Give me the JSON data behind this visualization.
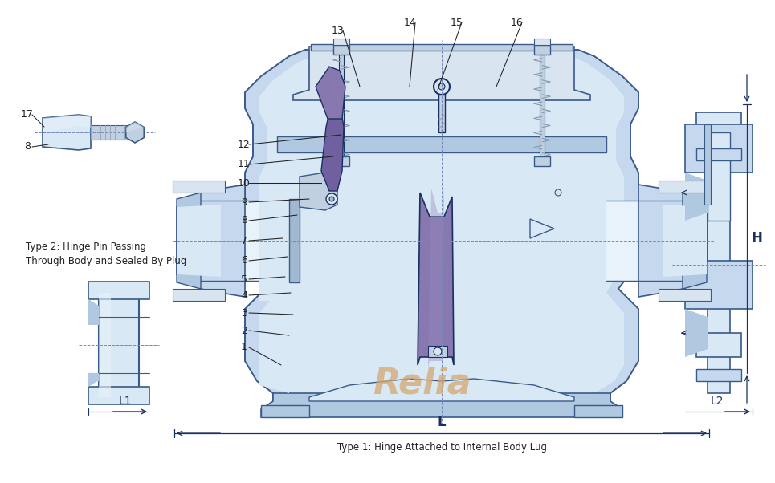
{
  "bg_color": "#ffffff",
  "lc": "#3a5a8a",
  "vb1": "#c5d8ee",
  "vb2": "#d8e8f5",
  "vb3": "#b0c8e0",
  "vb4": "#a0b8d0",
  "vb5": "#e8f2fa",
  "disc_fill": "#8878b0",
  "disc_hi": "#9888c0",
  "arm_fill": "#7060a0",
  "metal": "#c0d0e0",
  "metal2": "#d8e4ef",
  "dk": "#1a3060",
  "spring_c": "#889ab0",
  "relia_c": "#d4a870",
  "dim_c": "#333355",
  "text_c": "#222222",
  "dash_c": "#7788bb",
  "label_L": "L",
  "label_H": "H",
  "label_L1": "L1",
  "label_L2": "L2",
  "title1": "Type 2: Hinge Pin Passing",
  "title2": "Through Body and Sealed By Plug",
  "title3": "Type 1: Hinge Attached to Internal Body Lug",
  "watermark": "Relia",
  "fs_num": 9,
  "fs_title": 8.5,
  "fs_wm": 32,
  "fs_dim": 10
}
